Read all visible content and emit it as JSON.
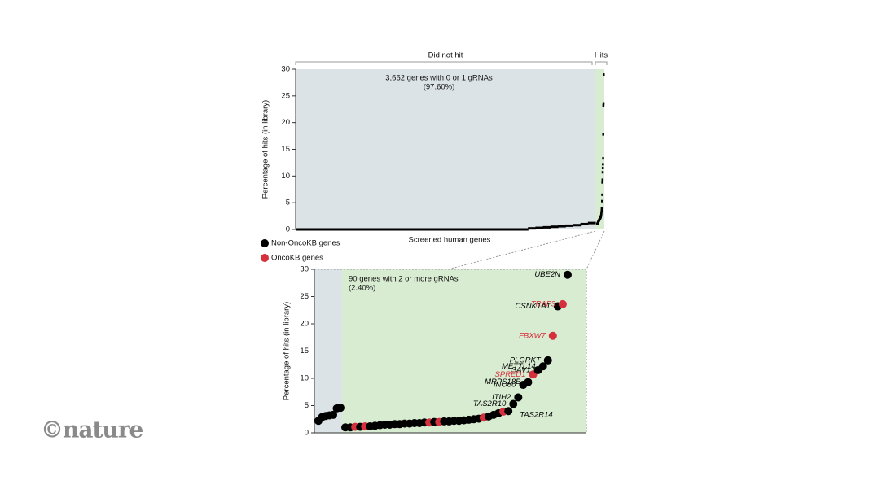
{
  "chart_data": [
    {
      "type": "scatter",
      "region_labels": [
        "Did not hit",
        "Hits"
      ],
      "annotation_lines": [
        "3,662 genes with 0 or 1 gRNAs",
        "(97.60%)"
      ],
      "xlabel": "Screened human genes",
      "ylabel": "Percentage of hits (in library)",
      "values": [
        0,
        0,
        0,
        0,
        0,
        0,
        0,
        0,
        0,
        0,
        0,
        0,
        0,
        0,
        0,
        0,
        0,
        0,
        0,
        0,
        0,
        0,
        0,
        0,
        0,
        0,
        0,
        0,
        0,
        0,
        0,
        0.2,
        0.3,
        0.4,
        0.5,
        0.6,
        0.7,
        0.8,
        1.0,
        1.2
      ],
      "color": "#000000",
      "region_colors": [
        "#dce3e6",
        "#d8ecd2"
      ],
      "ylim": [
        0,
        30
      ],
      "yticks": [
        0,
        5,
        10,
        15,
        20,
        25,
        30
      ]
    },
    {
      "type": "scatter",
      "annotation_lines": [
        "90 genes with 2 or more gRNAs",
        "(2.40%)"
      ],
      "ylabel": "Percentage of hits (in library)",
      "series": [
        {
          "name": "Non-OncoKB genes",
          "color": "#000000"
        },
        {
          "name": "OncoKB genes",
          "color": "#d6303c"
        }
      ],
      "nonhit_values": [
        2.2,
        2.9,
        3.1,
        3.2,
        3.3,
        4.5,
        4.6
      ],
      "hit_values": [
        1.0,
        1.0,
        1.1,
        1.1,
        1.2,
        1.2,
        1.3,
        1.4,
        1.5,
        1.5,
        1.6,
        1.6,
        1.7,
        1.7,
        1.8,
        1.8,
        1.9,
        1.9,
        2.0,
        2.0,
        2.1,
        2.1,
        2.2,
        2.2,
        2.3,
        2.4,
        2.5,
        2.6,
        2.8,
        3.0,
        3.3,
        3.6,
        3.9,
        4.0,
        5.3,
        6.5,
        8.8,
        9.3,
        10.7,
        11.5,
        12.2,
        13.3,
        17.8,
        23.2,
        23.6,
        29.0
      ],
      "group": [
        0,
        0,
        1,
        0,
        1,
        0,
        0,
        0,
        0,
        0,
        0,
        0,
        0,
        0,
        0,
        0,
        0,
        1,
        0,
        1,
        0,
        0,
        0,
        0,
        0,
        0,
        0,
        0,
        1,
        0,
        0,
        0,
        1,
        0,
        0,
        0,
        0,
        0,
        1,
        0,
        0,
        0,
        1,
        0,
        1,
        0
      ],
      "annotations": [
        {
          "text": "UBE2N",
          "point": 45
        },
        {
          "text": "TRAF3",
          "point": 44
        },
        {
          "text": "CSNK1A1",
          "point": 43
        },
        {
          "text": "FBXW7",
          "point": 42
        },
        {
          "text": "PLGRKT",
          "point": 41
        },
        {
          "text": "METTL14",
          "point": 40
        },
        {
          "text": "SAV1",
          "point": 39
        },
        {
          "text": "SPRED1",
          "point": 38
        },
        {
          "text": "MRPS18B",
          "point": 37
        },
        {
          "text": "INO80",
          "point": 36
        },
        {
          "text": "ITIH2",
          "point": 35
        },
        {
          "text": "TAS2R10",
          "point": 34
        },
        {
          "text": "TAS2R14",
          "point": 33
        }
      ],
      "ylim": [
        0,
        30
      ],
      "yticks": [
        0,
        5,
        10,
        15,
        20,
        25,
        30
      ]
    }
  ],
  "logo": "©nature"
}
